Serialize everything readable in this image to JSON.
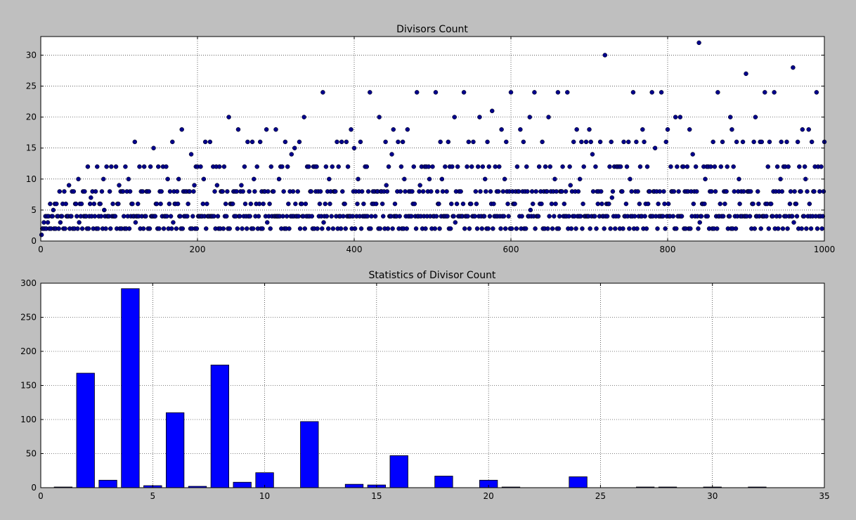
{
  "chart_data": [
    {
      "type": "scatter",
      "title": "Divisors Count",
      "xlabel": "",
      "ylabel": "",
      "xlim": [
        0,
        1000
      ],
      "ylim": [
        0,
        33
      ],
      "xticks": [
        0,
        200,
        400,
        600,
        800,
        1000
      ],
      "yticks": [
        0,
        5,
        10,
        15,
        20,
        25,
        30
      ],
      "grid": true,
      "marker_color": "#00008b",
      "series": [
        {
          "name": "",
          "x_start": 1,
          "x_end": 1000,
          "rule": "count of divisors of n"
        }
      ],
      "highlights": [
        {
          "x": 720,
          "y": 30
        },
        {
          "x": 840,
          "y": 32
        },
        {
          "x": 960,
          "y": 28
        },
        {
          "x": 900,
          "y": 27
        }
      ]
    },
    {
      "type": "bar",
      "title": "Statistics of Divisor Count",
      "xlabel": "",
      "ylabel": "",
      "xlim": [
        0,
        35
      ],
      "ylim": [
        0,
        300
      ],
      "xticks": [
        0,
        5,
        10,
        15,
        20,
        25,
        30,
        35
      ],
      "yticks": [
        0,
        50,
        100,
        150,
        200,
        250,
        300
      ],
      "grid": true,
      "bar_color": "#0000ff",
      "categories": [
        1,
        2,
        3,
        4,
        5,
        6,
        7,
        8,
        9,
        10,
        12,
        14,
        15,
        16,
        18,
        20,
        21,
        24,
        27,
        28,
        30,
        32
      ],
      "values": [
        1,
        168,
        11,
        292,
        3,
        110,
        2,
        180,
        8,
        22,
        97,
        5,
        4,
        47,
        17,
        11,
        1,
        16,
        1,
        1,
        1,
        1
      ]
    }
  ]
}
